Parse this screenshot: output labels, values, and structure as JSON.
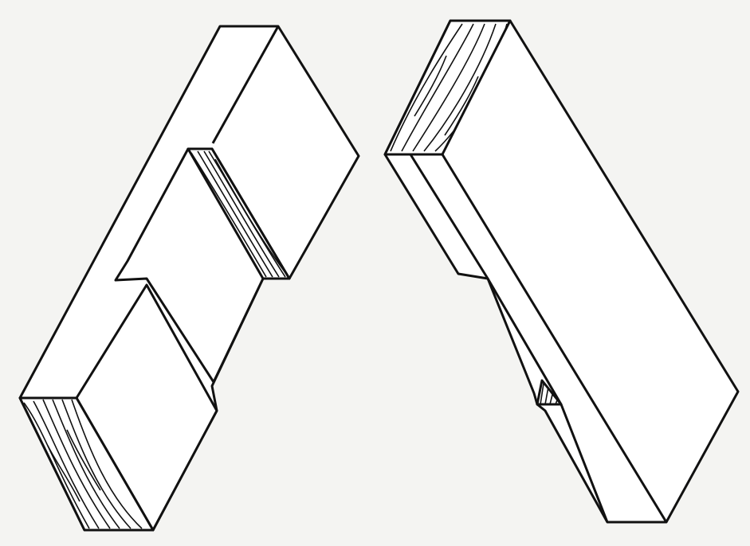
{
  "figure": {
    "left_piece": "joint-member-with-step-notch",
    "right_piece": "joint-member-with-step-shoulder",
    "colors": {
      "ink": "#111111",
      "paper": "#f4f4f2",
      "wood": "#ffffff"
    }
  }
}
